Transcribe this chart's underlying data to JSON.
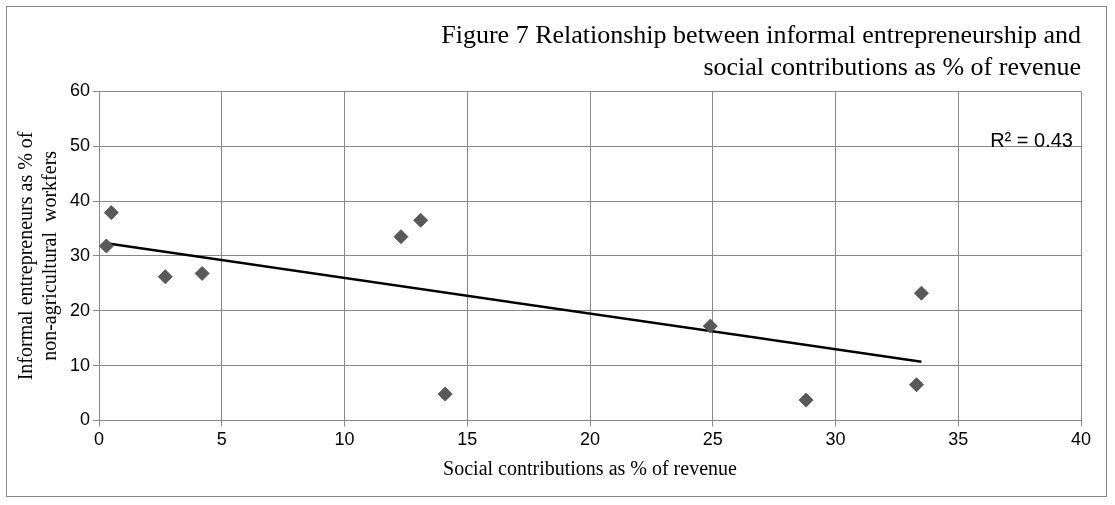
{
  "chart_data": {
    "type": "scatter",
    "title": "Figure 7 Relationship between informal entrepreneurship and social contributions as % of revenue",
    "xlabel": "Social contributions as % of revenue",
    "ylabel": "Informal entrepreneurs as % of non-agricultural  workfers",
    "x": [
      0.3,
      0.5,
      2.7,
      4.2,
      12.3,
      13.1,
      14.1,
      24.9,
      28.8,
      33.3,
      33.5
    ],
    "series": [
      {
        "color": "#595959",
        "values": [
          31.8,
          37.9,
          26.2,
          26.8,
          33.5,
          36.5,
          4.8,
          17.2,
          3.7,
          6.5,
          23.2
        ]
      },
      {
        "type": "line",
        "color": "#000000",
        "x": [
          0.3,
          33.5
        ],
        "values": [
          32.3,
          10.7
        ],
        "marker": "none"
      }
    ],
    "marker": "diamond",
    "xlim": [
      0,
      40
    ],
    "xticks": [
      0,
      5,
      10,
      15,
      20,
      25,
      30,
      35,
      40
    ],
    "ylim": [
      0,
      60
    ],
    "yticks": [
      0,
      10,
      20,
      30,
      40,
      50,
      60
    ],
    "grid": true,
    "legend": false,
    "annotations": [
      "R² = 0.43"
    ]
  }
}
